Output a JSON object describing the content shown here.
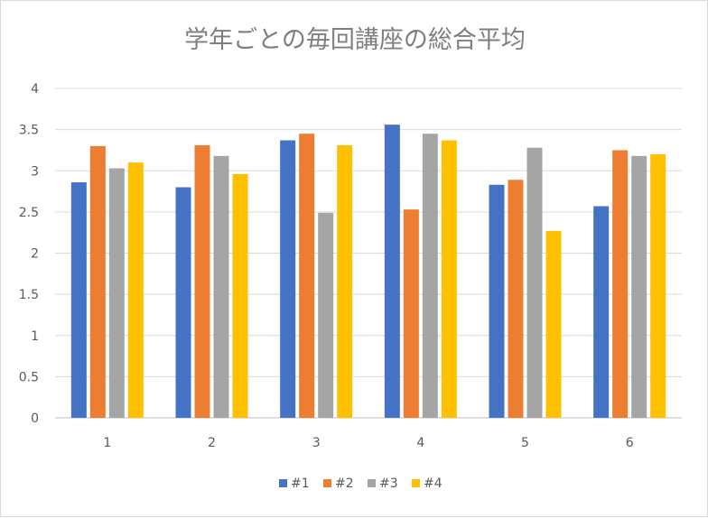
{
  "chart_data": {
    "type": "bar",
    "title": "学年ごとの毎回講座の総合平均",
    "categories": [
      "1",
      "2",
      "3",
      "4",
      "5",
      "6"
    ],
    "ylim": [
      0,
      4
    ],
    "yticks": [
      "0",
      "0.5",
      "1",
      "1.5",
      "2",
      "2.5",
      "3",
      "3.5",
      "4"
    ],
    "grid": true,
    "legend_position": "bottom",
    "series": [
      {
        "name": "#1",
        "color": "#4472c4",
        "values": [
          2.86,
          2.8,
          3.37,
          3.56,
          2.83,
          2.57
        ]
      },
      {
        "name": "#2",
        "color": "#ed7d31",
        "values": [
          3.3,
          3.31,
          3.45,
          2.53,
          2.89,
          3.25
        ]
      },
      {
        "name": "#3",
        "color": "#a5a5a5",
        "values": [
          3.03,
          3.18,
          2.49,
          3.45,
          3.28,
          3.18
        ]
      },
      {
        "name": "#4",
        "color": "#ffc000",
        "values": [
          3.1,
          2.96,
          3.31,
          3.37,
          2.27,
          3.2
        ]
      }
    ]
  }
}
